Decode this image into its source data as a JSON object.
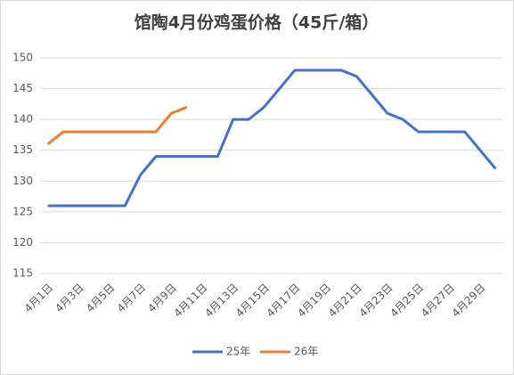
{
  "chart_data": {
    "type": "line",
    "title": "馆陶4月份鸡蛋价格（45斤/箱）",
    "categories": [
      "4月1日",
      null,
      "4月3日",
      null,
      "4月5日",
      null,
      "4月7日",
      null,
      "4月9日",
      null,
      "4月11日",
      null,
      "4月13日",
      null,
      "4月15日",
      null,
      "4月17日",
      null,
      "4月19日",
      null,
      "4月21日",
      null,
      "4月23日",
      null,
      "4月25日",
      null,
      "4月27日",
      null,
      "4月29日",
      null
    ],
    "series": [
      {
        "name": "25年",
        "color": "#4472c4",
        "values": [
          126,
          126,
          126,
          126,
          126,
          126,
          131,
          134,
          134,
          134,
          134,
          134,
          140,
          140,
          142,
          145,
          148,
          148,
          148,
          148,
          147,
          144,
          141,
          140,
          138,
          138,
          138,
          138,
          135,
          132
        ]
      },
      {
        "name": "26年",
        "color": "#ed7d31",
        "values": [
          136,
          138,
          138,
          138,
          138,
          138,
          138,
          138,
          141,
          142,
          null,
          null,
          null,
          null,
          null,
          null,
          null,
          null,
          null,
          null,
          null,
          null,
          null,
          null,
          null,
          null,
          null,
          null,
          null,
          null
        ]
      }
    ],
    "ylim": [
      115,
      150
    ],
    "yticks": [
      115,
      120,
      125,
      130,
      135,
      140,
      145,
      150
    ],
    "grid": true,
    "legend": "bottom"
  }
}
